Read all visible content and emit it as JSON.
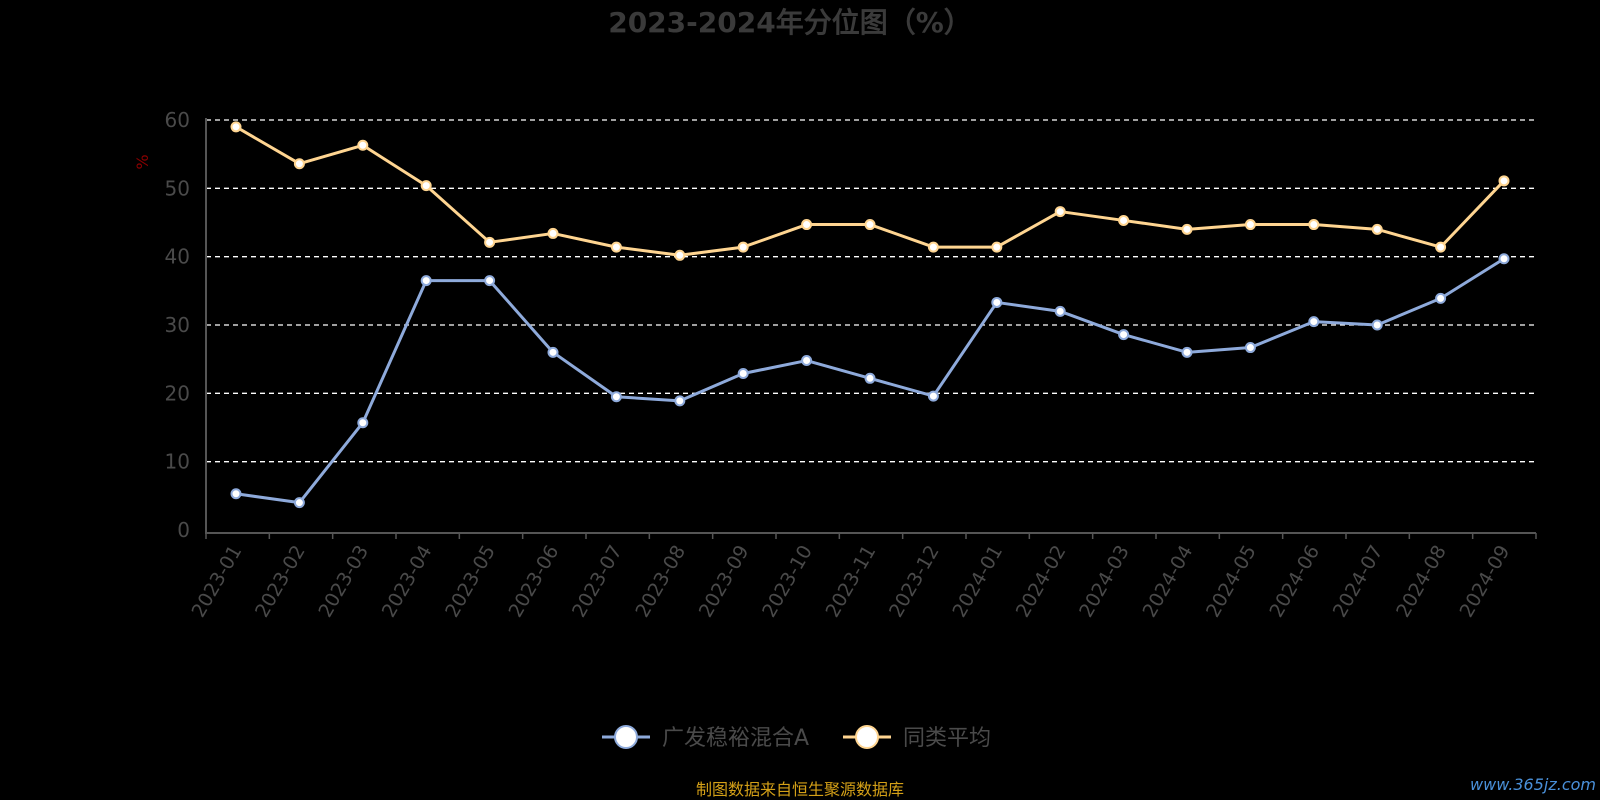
{
  "chart_data": {
    "type": "line",
    "title": "2023-2024年分位图（%）",
    "ylabel": "%",
    "ylim": [
      0,
      60
    ],
    "yticks": [
      0,
      10,
      20,
      30,
      40,
      50,
      60
    ],
    "grid": true,
    "legend_position": "bottom-center",
    "categories": [
      "2023-01",
      "2023-02",
      "2023-03",
      "2023-04",
      "2023-05",
      "2023-06",
      "2023-07",
      "2023-08",
      "2023-09",
      "2023-10",
      "2023-11",
      "2023-12",
      "2024-01",
      "2024-02",
      "2024-03",
      "2024-04",
      "2024-05",
      "2024-06",
      "2024-07",
      "2024-08",
      "2024-09"
    ],
    "series": [
      {
        "name": "广发稳裕混合A",
        "color": "#8eaadb",
        "values": [
          5.3,
          4.0,
          15.7,
          36.5,
          36.5,
          26.0,
          19.5,
          18.9,
          22.9,
          24.8,
          22.2,
          19.6,
          33.3,
          32.0,
          28.6,
          26.0,
          26.7,
          30.5,
          30.0,
          33.9,
          39.7
        ]
      },
      {
        "name": "同类平均",
        "color": "#ffd591",
        "values": [
          59.0,
          53.6,
          56.3,
          50.4,
          42.1,
          43.4,
          41.4,
          40.2,
          41.4,
          44.7,
          44.7,
          41.4,
          41.4,
          46.6,
          45.3,
          44.0,
          44.7,
          44.7,
          44.0,
          41.4,
          51.1
        ]
      }
    ]
  },
  "footer": {
    "source": "制图数据来自恒生聚源数据库",
    "watermark": "www.365jz.com"
  },
  "colors": {
    "background": "#000000",
    "grid": "#ffffff",
    "axis": "#555555",
    "ylabel": "#8b0000",
    "source": "#d4a017",
    "watermark": "#4a90d9"
  }
}
